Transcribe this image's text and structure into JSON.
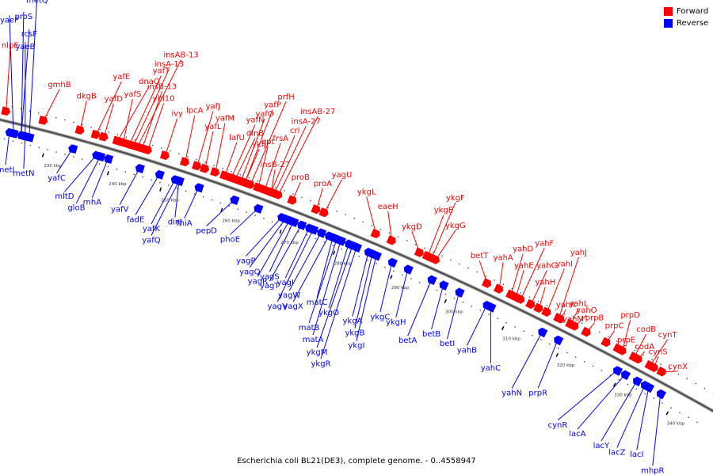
{
  "legend": {
    "forward_label": "Forward",
    "reverse_label": "Reverse",
    "forward_color": "#ff0000",
    "reverse_color": "#0000ff"
  },
  "caption": "Escherichia coli BL21(DE3), complete genome. - 0..4558947",
  "axis": {
    "unit": "kbp",
    "tick_labels": [
      "230 kbp",
      "240 kbp",
      "250 kbp",
      "260 kbp",
      "270 kbp",
      "280 kbp",
      "290 kbp",
      "300 kbp",
      "310 kbp",
      "320 kbp",
      "330 kbp",
      "340 kbp"
    ]
  },
  "forward_genes": [
    "nlpE",
    "gmhB",
    "dkgB",
    "yafE",
    "yafD",
    "dnaQ",
    "yafS",
    "yafT",
    "insA-13",
    "insAB-13",
    "insB-13",
    "ybl10",
    "ivy",
    "lpcA",
    "yafJ",
    "yafL",
    "yafM",
    "lafU",
    "yafN",
    "dinB",
    "yafO",
    "yafP",
    "prfH",
    "ykfJ",
    "gpt",
    "frsA",
    "crl",
    "insA-27",
    "insAB-27",
    "insB-27",
    "proB",
    "proA",
    "yagU",
    "ykgL",
    "eaeH",
    "ykgD",
    "ykgE",
    "ykgF",
    "ykgG",
    "betT",
    "yahA",
    "yahD",
    "yahE",
    "yahF",
    "yahG",
    "yahH",
    "yahI",
    "yahJ",
    "yahK",
    "yahL",
    "yahM",
    "yahO",
    "prpB",
    "prpC",
    "prpE",
    "prpD",
    "codB",
    "codA",
    "cynT",
    "cynS",
    "cynX"
  ],
  "reverse_genes": [
    "yaeF",
    "proS",
    "metQ",
    "rcsF",
    "yaeB",
    "metI",
    "metN",
    "yafC",
    "mltD",
    "gloB",
    "rnhA",
    "yafV",
    "fadE",
    "yafK",
    "yafQ",
    "dinJ",
    "fhiA",
    "pepD",
    "phoE",
    "yagP",
    "yagQ",
    "yagR",
    "yagS",
    "yagT",
    "yagI",
    "yagV",
    "yagW",
    "yagX",
    "matC",
    "matB",
    "matA",
    "ykgO",
    "ykgM",
    "ykgR",
    "ykgA",
    "ykgB",
    "ykgI",
    "ykgC",
    "ykgH",
    "betA",
    "betB",
    "betI",
    "yahB",
    "yahC",
    "yahN",
    "prpR",
    "cynR",
    "lacA",
    "lacY",
    "lacZ",
    "lacI",
    "mhpR"
  ]
}
